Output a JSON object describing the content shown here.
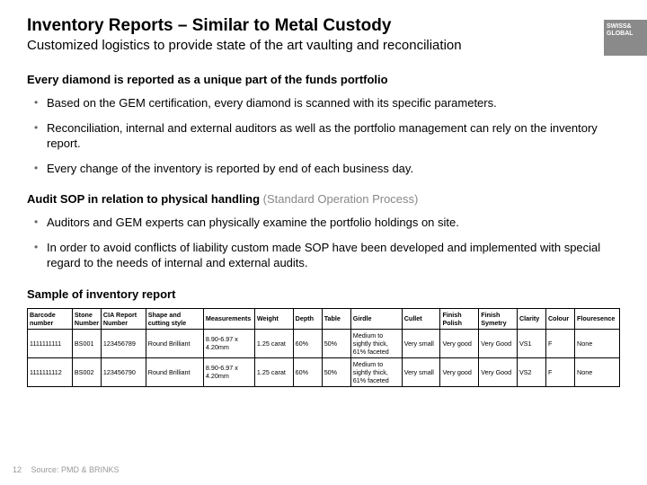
{
  "logo": "SWISS& GLOBAL",
  "title": "Inventory Reports – Similar to Metal Custody",
  "subtitle": "Customized logistics to provide state of the art vaulting and reconciliation",
  "section1": {
    "head": "Every diamond is reported as a unique part of the funds portfolio",
    "items": [
      "Based on the GEM certification, every diamond is scanned with its specific parameters.",
      "Reconciliation, internal and external auditors as well as the portfolio management can rely on the inventory report.",
      "Every change of the inventory is reported by end of each business day."
    ]
  },
  "section2": {
    "head": "Audit SOP in relation to physical handling",
    "head_gray": " (Standard Operation Process)",
    "items": [
      "Auditors and GEM experts can physically examine the portfolio holdings on site.",
      "In order to avoid conflicts of liability custom made SOP have been developed and implemented with special regard to the needs of internal and external audits."
    ]
  },
  "sample_label": "Sample of inventory report",
  "table": {
    "headers": [
      "Barcode number",
      "Stone Number",
      "CIA Report Number",
      "Shape and cutting style",
      "Measurements",
      "Weight",
      "Depth",
      "Table",
      "Girdle",
      "Cullet",
      "Finish Polish",
      "Finish Symetry",
      "Clarity",
      "Colour",
      "Flouresence"
    ],
    "rows": [
      [
        "1111111111",
        "BS001",
        "123456789",
        "Round Brilliant",
        "8.90-6.97 x 4.20mm",
        "1.25 carat",
        "60%",
        "50%",
        "Medium to sightly thick, 61% faceted",
        "Very small",
        "Very good",
        "Very Good",
        "VS1",
        "F",
        "None"
      ],
      [
        "1111111112",
        "BS002",
        "123456790",
        "Round Brilliant",
        "8.90-6.97 x 4.20mm",
        "1.25 carat",
        "60%",
        "50%",
        "Medium to sightly thick, 61% faceted",
        "Very small",
        "Very good",
        "Very Good",
        "VS2",
        "F",
        "None"
      ]
    ]
  },
  "page_number": "12",
  "source": "Source: PMD & BRINKS"
}
